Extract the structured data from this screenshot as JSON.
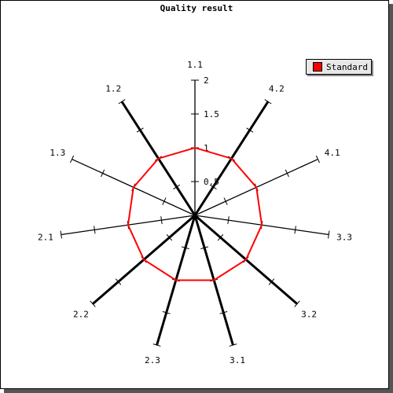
{
  "chart_data": {
    "type": "radar",
    "title": "Quality result",
    "categories": [
      "1.1",
      "4.2",
      "4.1",
      "3.3",
      "3.2",
      "3.1",
      "2.3",
      "2.2",
      "2.1",
      "1.3",
      "1.2"
    ],
    "series": [
      {
        "name": "Standard",
        "values": [
          1,
          1,
          1,
          1,
          1,
          1,
          1,
          1,
          1,
          1,
          1
        ],
        "color": "#ff0000"
      }
    ],
    "rlim": [
      0,
      2
    ],
    "ticks": [
      0.5,
      1,
      1.5,
      2
    ],
    "tick_labels": [
      "0.5",
      "1",
      "1.5",
      "2"
    ],
    "grid": false,
    "legend_position": "top-right"
  }
}
